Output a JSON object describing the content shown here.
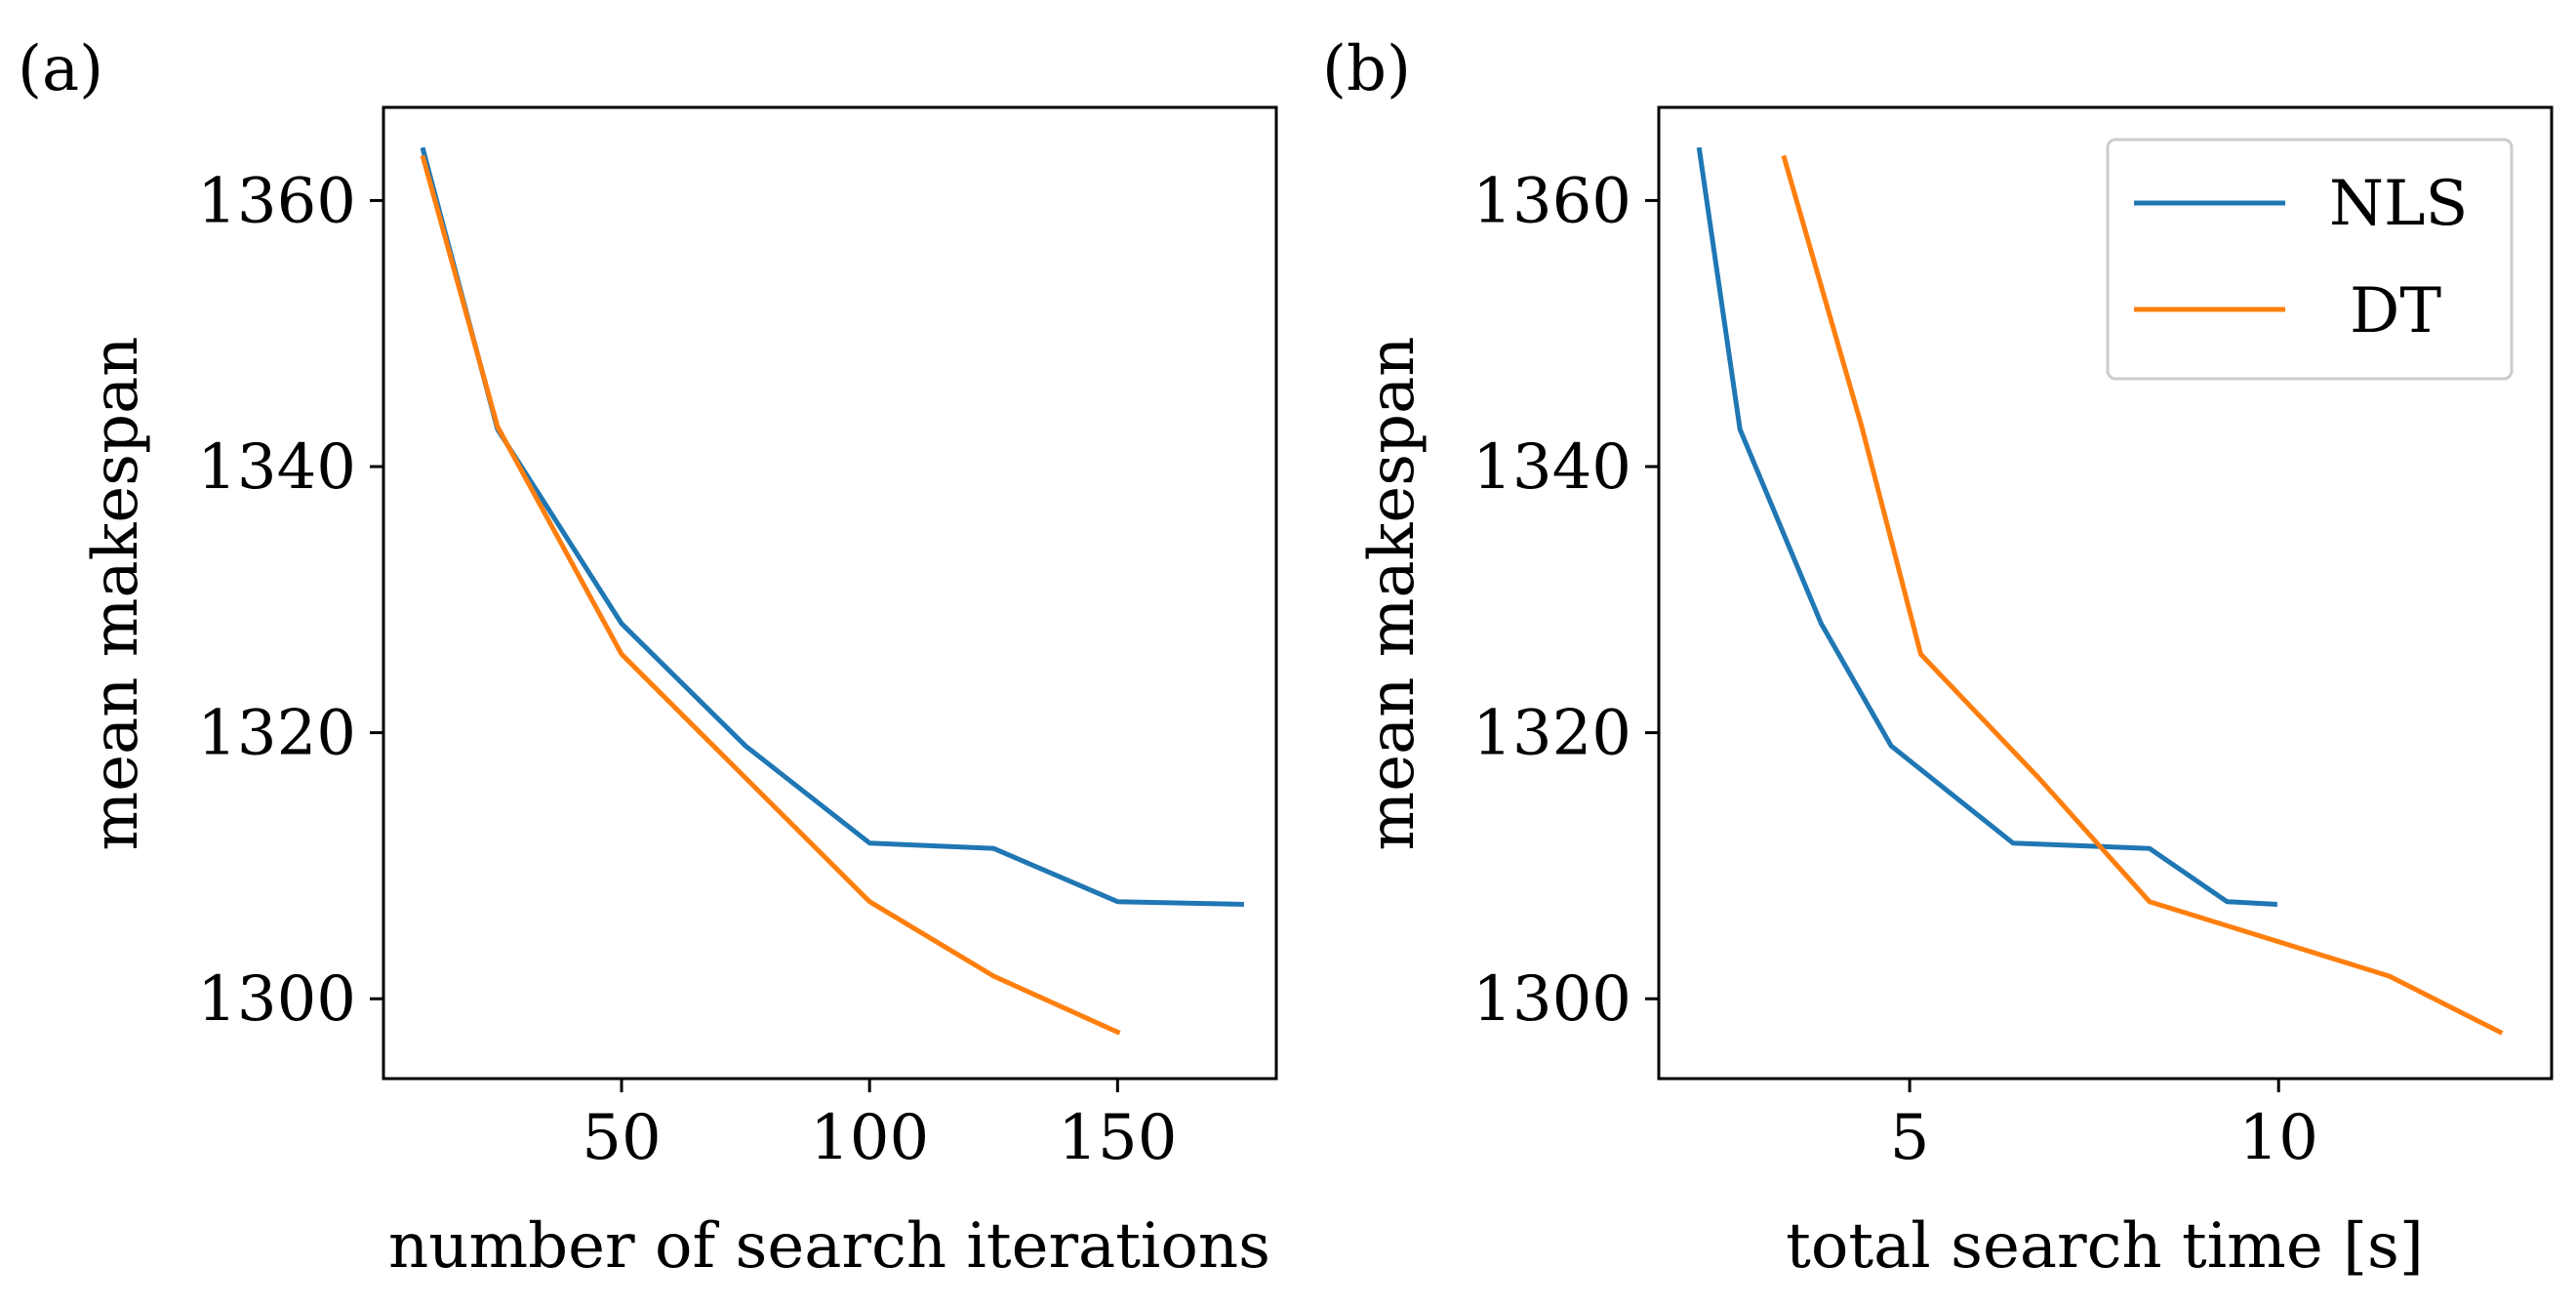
{
  "colors": {
    "nls": "#1f77b4",
    "dt": "#ff7f0e",
    "axis": "#000000"
  },
  "chart_data": [
    {
      "type": "line",
      "panel_label": "(a)",
      "xlabel": "number of search iterations",
      "ylabel": "mean makespan",
      "xlim": [
        2,
        182
      ],
      "ylim": [
        1294,
        1367
      ],
      "xticks": [
        50,
        100,
        150
      ],
      "xtick_labels": [
        "50",
        "100",
        "150"
      ],
      "yticks": [
        1300,
        1320,
        1340,
        1360
      ],
      "ytick_labels": [
        "1300",
        "1320",
        "1340",
        "1360"
      ],
      "grid": false,
      "legend": null,
      "series": [
        {
          "key": "nls",
          "x": [
            10,
            25,
            50,
            75,
            100,
            125,
            150,
            175
          ],
          "y": [
            1363.8,
            1342.8,
            1328.2,
            1319.0,
            1311.7,
            1311.3,
            1307.3,
            1307.1
          ]
        },
        {
          "key": "dt",
          "x": [
            10,
            25,
            50,
            75,
            100,
            125,
            150
          ],
          "y": [
            1363.2,
            1343.0,
            1325.9,
            1316.6,
            1307.3,
            1301.7,
            1297.5
          ]
        }
      ]
    },
    {
      "type": "line",
      "panel_label": "(b)",
      "xlabel": "total search time [s]",
      "ylabel": "mean makespan",
      "xlim": [
        1.6,
        13.7
      ],
      "ylim": [
        1294,
        1367
      ],
      "xticks": [
        5,
        10
      ],
      "xtick_labels": [
        "5",
        "10"
      ],
      "yticks": [
        1300,
        1320,
        1340,
        1360
      ],
      "ytick_labels": [
        "1300",
        "1320",
        "1340",
        "1360"
      ],
      "grid": false,
      "legend": {
        "placement": "top-right",
        "entries": [
          "NLS",
          "DT"
        ]
      },
      "series": [
        {
          "key": "nls",
          "name": "NLS",
          "x": [
            2.15,
            2.7,
            3.8,
            4.75,
            6.4,
            8.25,
            9.3,
            9.95
          ],
          "y": [
            1363.8,
            1342.8,
            1328.2,
            1319.0,
            1311.7,
            1311.3,
            1307.3,
            1307.1
          ]
        },
        {
          "key": "dt",
          "name": "DT",
          "x": [
            3.3,
            4.35,
            5.15,
            6.75,
            8.25,
            11.5,
            13.0
          ],
          "y": [
            1363.2,
            1343.0,
            1325.9,
            1316.6,
            1307.3,
            1301.7,
            1297.5
          ]
        }
      ]
    }
  ]
}
